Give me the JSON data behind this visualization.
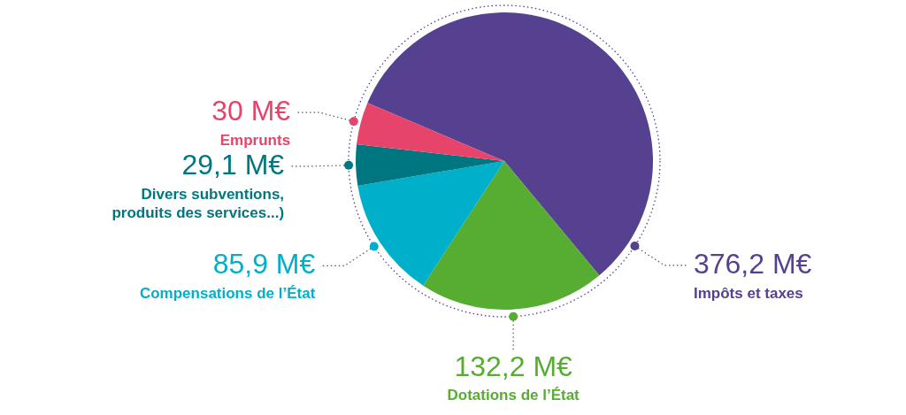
{
  "chart_data": {
    "type": "pie",
    "categories": [
      "Impôts et taxes",
      "Dotations de l’État",
      "Compensations de l’État",
      "Divers subventions, produits des services...)",
      "Emprunts"
    ],
    "values": [
      376.2,
      132.2,
      85.9,
      29.1,
      30
    ],
    "value_labels": [
      "376,2 M€",
      "132,2 M€",
      "85,9 M€",
      "29,1 M€",
      "30 M€"
    ],
    "colors": [
      "#55418f",
      "#56ad32",
      "#00afc9",
      "#007680",
      "#e6446a"
    ],
    "legend": false
  }
}
